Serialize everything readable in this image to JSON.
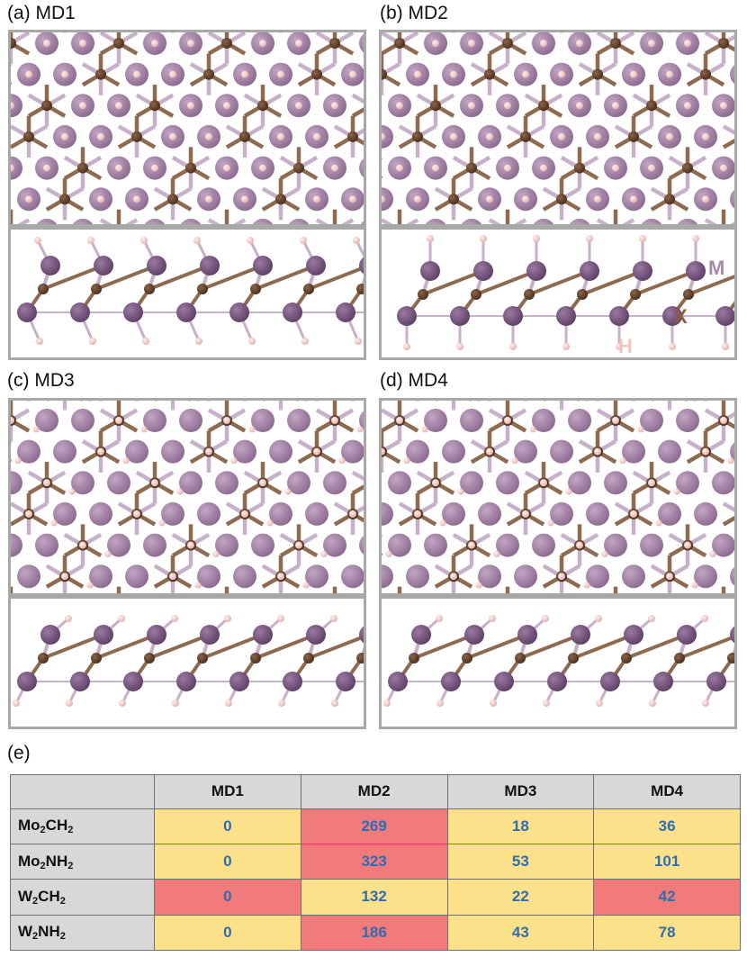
{
  "panels": [
    {
      "id": "a",
      "label": "(a) MD1"
    },
    {
      "id": "b",
      "label": "(b) MD2"
    },
    {
      "id": "c",
      "label": "(c) MD3"
    },
    {
      "id": "d",
      "label": "(d) MD4"
    }
  ],
  "atom_labels": {
    "M": "M",
    "X": "X",
    "H": "H"
  },
  "table_label": "(e)",
  "table": {
    "columns": [
      "MD1",
      "MD2",
      "MD3",
      "MD4"
    ],
    "rows": [
      {
        "base": "Mo",
        "s1": "2",
        "mid": "CH",
        "s2": "2",
        "values": [
          "0",
          "269",
          "18",
          "36"
        ],
        "colors": [
          "yellow",
          "red",
          "yellow",
          "yellow"
        ]
      },
      {
        "base": "Mo",
        "s1": "2",
        "mid": "NH",
        "s2": "2",
        "values": [
          "0",
          "323",
          "53",
          "101"
        ],
        "colors": [
          "yellow",
          "red",
          "yellow",
          "yellow"
        ]
      },
      {
        "base": "W",
        "s1": "2",
        "mid": "CH",
        "s2": "2",
        "values": [
          "0",
          "132",
          "22",
          "42"
        ],
        "colors": [
          "red",
          "yellow",
          "yellow",
          "red"
        ]
      },
      {
        "base": "W",
        "s1": "2",
        "mid": "NH",
        "s2": "2",
        "values": [
          "0",
          "186",
          "43",
          "78"
        ],
        "colors": [
          "yellow",
          "red",
          "yellow",
          "yellow"
        ]
      }
    ]
  },
  "colors": {
    "M": "#a58aa8",
    "M_dark": "#8a6390",
    "X": "#6b4a33",
    "H": "#f3c9c6",
    "bond_M": "#c7b0c9",
    "bond_X": "#8d6a50",
    "table_value": "#2f6db3",
    "cell_yellow": "#fde08a",
    "cell_red": "#f17b7b",
    "header": "#d8d8d8"
  }
}
